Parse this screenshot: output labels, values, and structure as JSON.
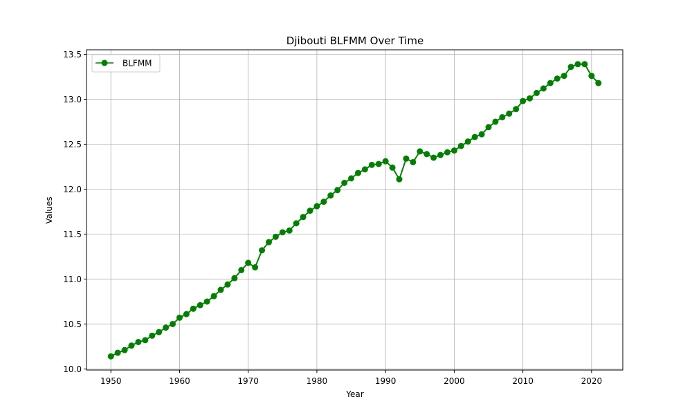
{
  "chart_data": {
    "type": "line",
    "title": "Djibouti BLFMM Over Time",
    "xlabel": "Year",
    "ylabel": "Values",
    "xlim": [
      1946.45,
      2024.55
    ],
    "ylim": [
      9.988,
      13.55
    ],
    "xticks": [
      1950,
      1960,
      1970,
      1980,
      1990,
      2000,
      2010,
      2020
    ],
    "yticks": [
      10.0,
      10.5,
      11.0,
      11.5,
      12.0,
      12.5,
      13.0,
      13.5
    ],
    "ytick_labels": [
      "10.0",
      "10.5",
      "11.0",
      "11.5",
      "12.0",
      "12.5",
      "13.0",
      "13.5"
    ],
    "grid": true,
    "legend_position": "top-left",
    "series": [
      {
        "name": "BLFMM",
        "color": "#008000",
        "marker": "circle",
        "x": [
          1950,
          1951,
          1952,
          1953,
          1954,
          1955,
          1956,
          1957,
          1958,
          1959,
          1960,
          1961,
          1962,
          1963,
          1964,
          1965,
          1966,
          1967,
          1968,
          1969,
          1970,
          1971,
          1972,
          1973,
          1974,
          1975,
          1976,
          1977,
          1978,
          1979,
          1980,
          1981,
          1982,
          1983,
          1984,
          1985,
          1986,
          1987,
          1988,
          1989,
          1990,
          1991,
          1992,
          1993,
          1994,
          1995,
          1996,
          1997,
          1998,
          1999,
          2000,
          2001,
          2002,
          2003,
          2004,
          2005,
          2006,
          2007,
          2008,
          2009,
          2010,
          2011,
          2012,
          2013,
          2014,
          2015,
          2016,
          2017,
          2018,
          2019,
          2020,
          2021
        ],
        "values": [
          10.14,
          10.18,
          10.21,
          10.26,
          10.3,
          10.32,
          10.37,
          10.41,
          10.46,
          10.5,
          10.57,
          10.61,
          10.67,
          10.71,
          10.75,
          10.81,
          10.88,
          10.94,
          11.01,
          11.1,
          11.18,
          11.13,
          11.32,
          11.41,
          11.47,
          11.52,
          11.54,
          11.62,
          11.69,
          11.76,
          11.81,
          11.86,
          11.93,
          11.99,
          12.07,
          12.12,
          12.18,
          12.22,
          12.27,
          12.28,
          12.31,
          12.24,
          12.11,
          12.34,
          12.3,
          12.42,
          12.39,
          12.35,
          12.38,
          12.41,
          12.43,
          12.48,
          12.53,
          12.58,
          12.61,
          12.69,
          12.75,
          12.8,
          12.84,
          12.89,
          12.98,
          13.01,
          13.07,
          13.12,
          13.18,
          13.23,
          13.26,
          13.36,
          13.39,
          13.39,
          13.26,
          13.18
        ]
      }
    ]
  }
}
